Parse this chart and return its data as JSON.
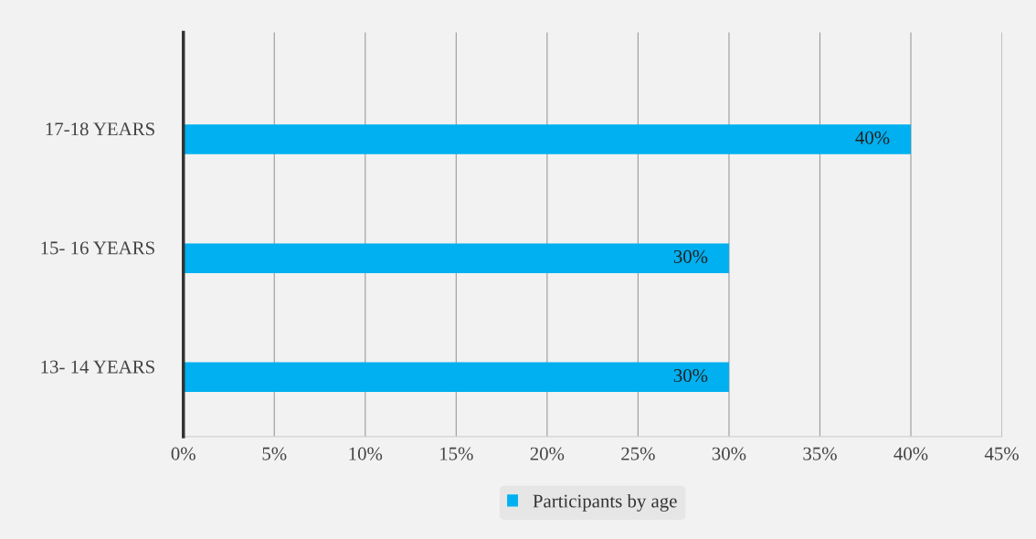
{
  "chart_data": {
    "type": "bar",
    "orientation": "horizontal",
    "categories": [
      "17-18 YEARS",
      "15- 16 YEARS",
      "13- 14 YEARS"
    ],
    "series": [
      {
        "name": "Participants by age",
        "color": "#00b0f0",
        "values": [
          40,
          30,
          30
        ],
        "value_labels": [
          "40%",
          "30%",
          "30%"
        ]
      }
    ],
    "xlim": [
      0,
      45
    ],
    "xticks": [
      {
        "value": 0,
        "label": "0%"
      },
      {
        "value": 5,
        "label": "5%"
      },
      {
        "value": 10,
        "label": "10%"
      },
      {
        "value": 15,
        "label": "15%"
      },
      {
        "value": 20,
        "label": "20%"
      },
      {
        "value": 25,
        "label": "25%"
      },
      {
        "value": 30,
        "label": "30%"
      },
      {
        "value": 35,
        "label": "35%"
      },
      {
        "value": 40,
        "label": "40%"
      },
      {
        "value": 45,
        "label": "45%"
      }
    ],
    "grid": "x",
    "legend": "bottom"
  }
}
